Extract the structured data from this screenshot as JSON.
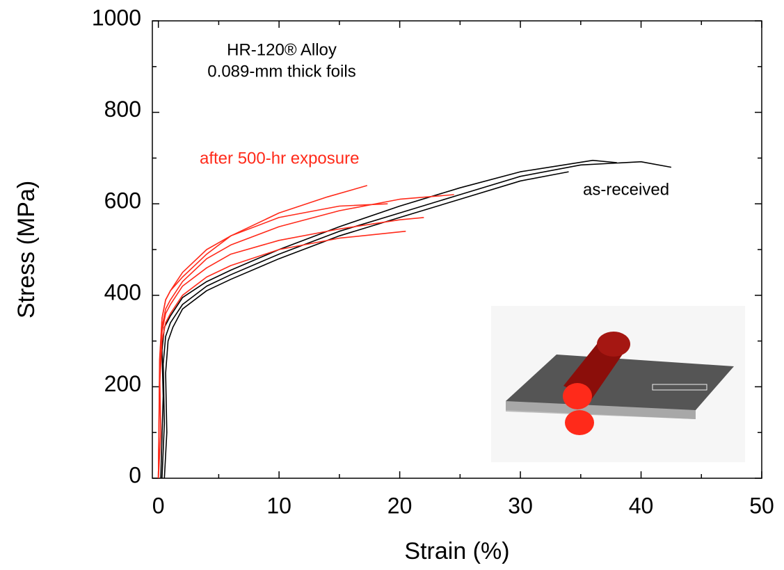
{
  "chart_data": {
    "type": "line",
    "x_label": "Strain (%)",
    "y_label": "Stress (MPa)",
    "xlim": [
      -0.5,
      50
    ],
    "ylim": [
      0,
      1000
    ],
    "xticks": [
      0,
      10,
      20,
      30,
      40,
      50
    ],
    "yticks": [
      0,
      200,
      400,
      600,
      800,
      1000
    ],
    "xticks_minor": [
      5,
      15,
      25,
      35,
      45
    ],
    "yticks_minor": [
      100,
      300,
      500,
      700,
      900
    ],
    "annotations": [
      {
        "text": "HR-120® Alloy",
        "color": "#000000"
      },
      {
        "text": "0.089-mm thick foils",
        "color": "#000000"
      },
      {
        "text": "after 500-hr exposure",
        "color": "#ff2a1a"
      },
      {
        "text": "as-received",
        "color": "#000000"
      }
    ],
    "series": [
      {
        "color": "#000000",
        "x": [
          0.3,
          0.5,
          0.4,
          0.6,
          1,
          2,
          4,
          6,
          10,
          15,
          20,
          25,
          30,
          35,
          40,
          42.5
        ],
        "values": [
          0,
          120,
          250,
          310,
          340,
          380,
          420,
          445,
          490,
          540,
          580,
          620,
          660,
          685,
          692,
          680
        ]
      },
      {
        "color": "#000000",
        "x": [
          0.5,
          0.7,
          0.6,
          0.8,
          1.2,
          2,
          4,
          6,
          10,
          15,
          20,
          25,
          30,
          34
        ],
        "values": [
          0,
          100,
          230,
          300,
          330,
          370,
          410,
          435,
          480,
          530,
          570,
          610,
          650,
          670
        ]
      },
      {
        "color": "#000000",
        "x": [
          0.2,
          0.4,
          0.3,
          0.5,
          1,
          2,
          4,
          6,
          10,
          15,
          20,
          25,
          30,
          36,
          38
        ],
        "values": [
          0,
          180,
          280,
          330,
          355,
          395,
          430,
          455,
          500,
          550,
          595,
          635,
          670,
          695,
          690
        ]
      },
      {
        "color": "#ff2a1a",
        "x": [
          0,
          0.2,
          0.1,
          0.3,
          0.6,
          1,
          2,
          4,
          6,
          10,
          14,
          17.3
        ],
        "values": [
          0,
          100,
          250,
          350,
          390,
          410,
          450,
          500,
          530,
          580,
          615,
          640
        ]
      },
      {
        "color": "#ff2a1a",
        "x": [
          0,
          0.1,
          0.3,
          0.6,
          1,
          2,
          4,
          6,
          10,
          15,
          20,
          24.5
        ],
        "values": [
          0,
          230,
          330,
          370,
          390,
          430,
          480,
          510,
          550,
          585,
          610,
          620
        ]
      },
      {
        "color": "#ff2a1a",
        "x": [
          0,
          0.1,
          0.3,
          0.6,
          1,
          2,
          4,
          6,
          10,
          15,
          20,
          22
        ],
        "values": [
          0,
          220,
          320,
          360,
          380,
          420,
          460,
          490,
          520,
          545,
          565,
          570
        ]
      },
      {
        "color": "#ff2a1a",
        "x": [
          0,
          0.1,
          0.3,
          0.6,
          1,
          2,
          4,
          6,
          10,
          15,
          20.5
        ],
        "values": [
          0,
          200,
          300,
          340,
          360,
          400,
          440,
          465,
          500,
          525,
          540
        ]
      },
      {
        "color": "#ff2a1a",
        "x": [
          0,
          0.1,
          0.3,
          0.6,
          1,
          2,
          4,
          6,
          10,
          15,
          19
        ],
        "values": [
          0,
          260,
          350,
          390,
          410,
          440,
          490,
          530,
          570,
          595,
          600
        ]
      }
    ]
  }
}
